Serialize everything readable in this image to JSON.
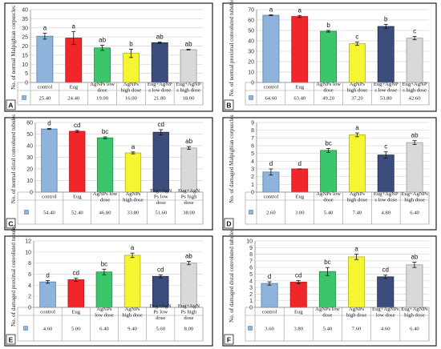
{
  "colors": {
    "bar_fills": [
      "#8fb4dc",
      "#f0262a",
      "#3cc66c",
      "#f6f532",
      "#3b4d7c",
      "#d9d9d9"
    ],
    "bar_strokes": [
      "#4f7fb4",
      "#b81a1d",
      "#1f8f46",
      "#b3b01a",
      "#1e2b4e",
      "#9a9a9a"
    ]
  },
  "chart_data": [
    {
      "type": "bar",
      "panel_label": "A",
      "ylabel": "No. of normal Malpighian corpuscles",
      "ylim": [
        0,
        40
      ],
      "yticks": [
        0,
        5,
        10,
        15,
        20,
        25,
        30,
        35,
        40
      ],
      "categories": [
        "control",
        "Eug",
        "AgNPs low dose",
        "AgNPs high dose",
        "Eug+AgNPs low dose",
        "Eug+AgNPs high dose"
      ],
      "category_lines": [
        [
          "control"
        ],
        [
          "Eug"
        ],
        [
          "AgNPs low",
          "dose"
        ],
        [
          "AgNPs",
          "high dose"
        ],
        [
          "Eug+AgNP",
          "s low dose"
        ],
        [
          "Eug+AgNP",
          "s high dose"
        ]
      ],
      "values": [
        25.4,
        24.4,
        19.0,
        16.0,
        21.8,
        18.0
      ],
      "errors": [
        1.6,
        3.6,
        1.4,
        2.3,
        0.4,
        0.2
      ],
      "letters": [
        "a",
        "a",
        "ab",
        "b",
        "ab",
        "ab"
      ],
      "value_labels": [
        "25.40",
        "24.40",
        "19.00",
        "16.00",
        "21.80",
        "18.00"
      ]
    },
    {
      "type": "bar",
      "panel_label": "B",
      "ylabel": "No. of normal proximal convoluted tubules",
      "ylim": [
        0,
        70
      ],
      "yticks": [
        0,
        10,
        20,
        30,
        40,
        50,
        60,
        70
      ],
      "categories": [
        "control",
        "Eug",
        "AgNPs low dose",
        "AgNPs high dose",
        "Eug+AgNPs low dose",
        "Eug+AgNPs high dose"
      ],
      "category_lines": [
        [
          "control"
        ],
        [
          "Eug"
        ],
        [
          "AgNPs low",
          "dose"
        ],
        [
          "AgNPs",
          "high dose"
        ],
        [
          "Eug+AgNP",
          "s low dose"
        ],
        [
          "Eug+AgNP",
          "s high dose"
        ]
      ],
      "values": [
        64.6,
        63.4,
        49.2,
        37.2,
        53.8,
        42.6
      ],
      "errors": [
        0.4,
        1.0,
        0.8,
        1.6,
        2.0,
        1.6
      ],
      "letters": [
        "a",
        "a",
        "b",
        "c",
        "b",
        "c"
      ],
      "value_labels": [
        "64.60",
        "63.40",
        "49.20",
        "37.20",
        "53.80",
        "42.60"
      ]
    },
    {
      "type": "bar",
      "panel_label": "C",
      "ylabel": "No. of normal distal convoluted tubules",
      "ylim": [
        0,
        60
      ],
      "yticks": [
        0,
        10,
        20,
        30,
        40,
        50,
        60
      ],
      "categories": [
        "control",
        "Eug",
        "AgNPs low dose",
        "AgNPs high dose",
        "Eug+AgNPs low dose",
        "Eug+AgNPs high dose"
      ],
      "category_lines": [
        [
          "control"
        ],
        [
          "Eug"
        ],
        [
          "AgNPs low",
          "dose"
        ],
        [
          "AgNPs",
          "high dose"
        ],
        [
          "Eug+AgN",
          "Ps low",
          "dose"
        ],
        [
          "Eug+AgN",
          "Ps high",
          "dose"
        ]
      ],
      "values": [
        54.4,
        52.4,
        46.8,
        33.8,
        51.6,
        38.0
      ],
      "errors": [
        0.4,
        0.8,
        0.8,
        0.8,
        2.2,
        1.2
      ],
      "letters": [
        "d",
        "cd",
        "bc",
        "a",
        "cd",
        "ab"
      ],
      "value_labels": [
        "54.40",
        "52.40",
        "46.80",
        "33.80",
        "51.60",
        "38.00"
      ]
    },
    {
      "type": "bar",
      "panel_label": "D",
      "ylabel": "No. of damaged Malpighian corpuscles",
      "ylim": [
        0,
        9
      ],
      "yticks": [
        0,
        1,
        2,
        3,
        4,
        5,
        6,
        7,
        8,
        9
      ],
      "categories": [
        "control",
        "Eug",
        "AgNPs low dose",
        "AgNPs high dose",
        "Eug+AgNPs low dose",
        "Eug+AgNPs high dose"
      ],
      "category_lines": [
        [
          "control"
        ],
        [
          "Eug"
        ],
        [
          "AgNPs low",
          "dose"
        ],
        [
          "AgNPs",
          "high dose"
        ],
        [
          "Eug+AgNP",
          "s low dose"
        ],
        [
          "Eug+AgNPs",
          "high dose"
        ]
      ],
      "values": [
        2.6,
        3.0,
        5.4,
        7.4,
        4.8,
        6.4
      ],
      "errors": [
        0.4,
        0.0,
        0.25,
        0.25,
        0.4,
        0.25
      ],
      "letters": [
        "d",
        "d",
        "bc",
        "a",
        "c",
        "ab"
      ],
      "value_labels": [
        "2.60",
        "3.00",
        "5.40",
        "7.40",
        "4.80",
        "6.40"
      ]
    },
    {
      "type": "bar",
      "panel_label": "E",
      "ylabel": "No. of damaged proximal convoluted tubules",
      "ylim": [
        0,
        12
      ],
      "yticks": [
        0,
        2,
        4,
        6,
        8,
        10,
        12
      ],
      "categories": [
        "control",
        "Eug",
        "AgNPs low dose",
        "AgNPs high dose",
        "Eug+AgNPs low dose",
        "Eug+AgNPs high dose"
      ],
      "category_lines": [
        [
          "control"
        ],
        [
          "Eug"
        ],
        [
          "AgNPs",
          "low dose"
        ],
        [
          "AgNPs",
          "high dose"
        ],
        [
          "Eug+AgN",
          "Ps low",
          "dose"
        ],
        [
          "Eug+AgN",
          "Ps high",
          "dose"
        ]
      ],
      "values": [
        4.6,
        5.0,
        6.4,
        9.4,
        5.6,
        8.0
      ],
      "errors": [
        0.25,
        0.3,
        0.5,
        0.4,
        0.25,
        0.3
      ],
      "letters": [
        "d",
        "cd",
        "bc",
        "a",
        "cd",
        "ab"
      ],
      "value_labels": [
        "4.60",
        "5.00",
        "6.40",
        "9.40",
        "5.60",
        "8.00"
      ]
    },
    {
      "type": "bar",
      "panel_label": "F",
      "ylabel": "No. of damaged distal convoluted tubules",
      "ylim": [
        0,
        10
      ],
      "yticks": [
        0,
        1,
        2,
        3,
        4,
        5,
        6,
        7,
        8,
        9,
        10
      ],
      "categories": [
        "control",
        "Eug",
        "AgNPs low dose",
        "AgNPs high dose",
        "Eug+AgNPs low dose",
        "Eug+AgNPs high dose"
      ],
      "category_lines": [
        [
          "control"
        ],
        [
          "Eug"
        ],
        [
          "AgNPs low",
          "dose"
        ],
        [
          "AgNPs",
          "high dose"
        ],
        [
          "Eug+AgNPs",
          "low dose"
        ],
        [
          "Eug+AgNPs",
          "high dose"
        ]
      ],
      "values": [
        3.6,
        3.8,
        5.4,
        7.6,
        4.6,
        6.4
      ],
      "errors": [
        0.25,
        0.25,
        0.6,
        0.4,
        0.25,
        0.4
      ],
      "letters": [
        "d",
        "cd",
        "bc",
        "a",
        "cd",
        "ab"
      ],
      "value_labels": [
        "3.60",
        "3.80",
        "5.40",
        "7.60",
        "4.60",
        "6.40"
      ]
    }
  ]
}
